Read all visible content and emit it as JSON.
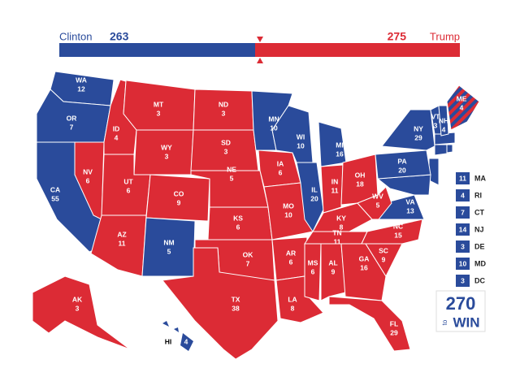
{
  "bar": {
    "left_name": "Clinton",
    "left_value": 263,
    "right_value": 275,
    "right_name": "Trump"
  },
  "states": [
    {
      "abbr": "WA",
      "votes": 12,
      "party": "D"
    },
    {
      "abbr": "OR",
      "votes": 7,
      "party": "D"
    },
    {
      "abbr": "CA",
      "votes": 55,
      "party": "D"
    },
    {
      "abbr": "NV",
      "votes": 6,
      "party": "R"
    },
    {
      "abbr": "ID",
      "votes": 4,
      "party": "R"
    },
    {
      "abbr": "MT",
      "votes": 3,
      "party": "R"
    },
    {
      "abbr": "WY",
      "votes": 3,
      "party": "R"
    },
    {
      "abbr": "UT",
      "votes": 6,
      "party": "R"
    },
    {
      "abbr": "AZ",
      "votes": 11,
      "party": "R"
    },
    {
      "abbr": "CO",
      "votes": 9,
      "party": "R"
    },
    {
      "abbr": "NM",
      "votes": 5,
      "party": "D"
    },
    {
      "abbr": "ND",
      "votes": 3,
      "party": "R"
    },
    {
      "abbr": "SD",
      "votes": 3,
      "party": "R"
    },
    {
      "abbr": "NE",
      "votes": 5,
      "party": "R"
    },
    {
      "abbr": "KS",
      "votes": 6,
      "party": "R"
    },
    {
      "abbr": "OK",
      "votes": 7,
      "party": "R"
    },
    {
      "abbr": "TX",
      "votes": 38,
      "party": "R"
    },
    {
      "abbr": "MN",
      "votes": 10,
      "party": "D"
    },
    {
      "abbr": "IA",
      "votes": 6,
      "party": "R"
    },
    {
      "abbr": "MO",
      "votes": 10,
      "party": "R"
    },
    {
      "abbr": "AR",
      "votes": 6,
      "party": "R"
    },
    {
      "abbr": "LA",
      "votes": 8,
      "party": "R"
    },
    {
      "abbr": "WI",
      "votes": 10,
      "party": "D"
    },
    {
      "abbr": "IL",
      "votes": 20,
      "party": "D"
    },
    {
      "abbr": "MI",
      "votes": 16,
      "party": "D"
    },
    {
      "abbr": "IN",
      "votes": 11,
      "party": "R"
    },
    {
      "abbr": "OH",
      "votes": 18,
      "party": "R"
    },
    {
      "abbr": "KY",
      "votes": 8,
      "party": "R"
    },
    {
      "abbr": "TN",
      "votes": 11,
      "party": "R"
    },
    {
      "abbr": "MS",
      "votes": 6,
      "party": "R"
    },
    {
      "abbr": "AL",
      "votes": 9,
      "party": "R"
    },
    {
      "abbr": "GA",
      "votes": 16,
      "party": "R"
    },
    {
      "abbr": "FL",
      "votes": 29,
      "party": "R"
    },
    {
      "abbr": "SC",
      "votes": 9,
      "party": "R"
    },
    {
      "abbr": "NC",
      "votes": 15,
      "party": "R"
    },
    {
      "abbr": "VA",
      "votes": 13,
      "party": "D"
    },
    {
      "abbr": "WV",
      "votes": 5,
      "party": "R"
    },
    {
      "abbr": "PA",
      "votes": 20,
      "party": "D"
    },
    {
      "abbr": "NY",
      "votes": 29,
      "party": "D"
    },
    {
      "abbr": "VT",
      "votes": 3,
      "party": "D"
    },
    {
      "abbr": "NH",
      "votes": 4,
      "party": "D"
    },
    {
      "abbr": "ME",
      "votes": 4,
      "party": "split"
    },
    {
      "abbr": "AK",
      "votes": 3,
      "party": "R"
    },
    {
      "abbr": "HI",
      "votes": 4,
      "party": "D"
    }
  ],
  "small_states": [
    {
      "votes": 11,
      "abbr": "MA"
    },
    {
      "votes": 4,
      "abbr": "RI"
    },
    {
      "votes": 7,
      "abbr": "CT"
    },
    {
      "votes": 14,
      "abbr": "NJ"
    },
    {
      "votes": 3,
      "abbr": "DE"
    },
    {
      "votes": 10,
      "abbr": "MD"
    },
    {
      "votes": 3,
      "abbr": "DC"
    }
  ],
  "logo": {
    "number": "270",
    "to": "to",
    "win": "WIN"
  }
}
